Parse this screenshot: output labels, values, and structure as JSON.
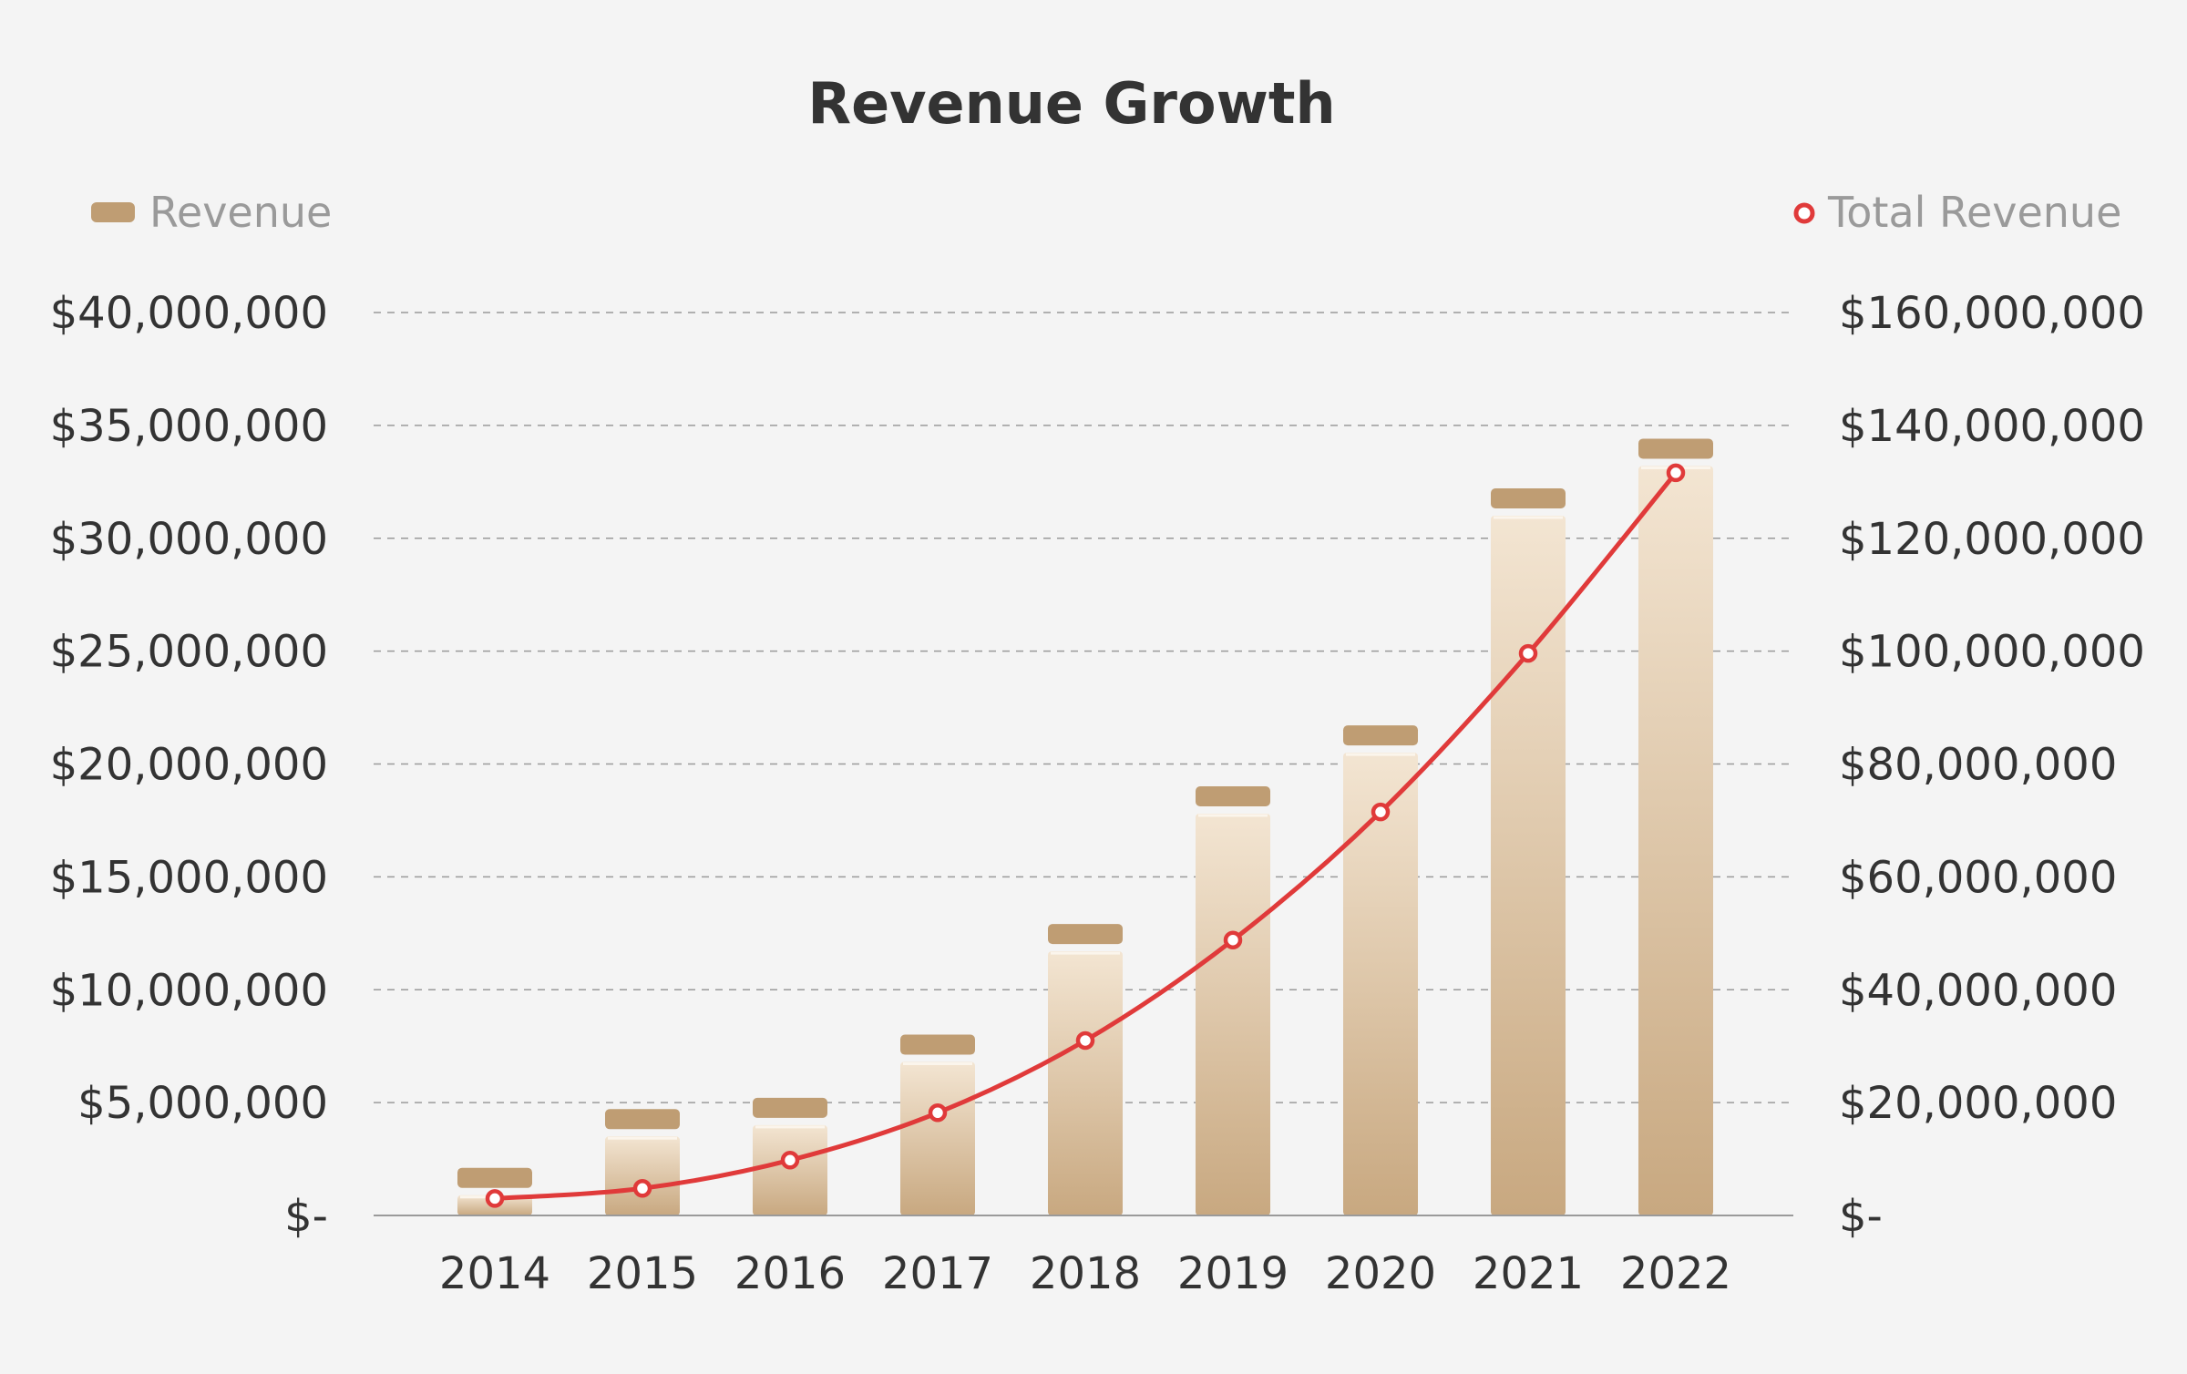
{
  "chart_data": {
    "type": "bar",
    "title": "Revenue Growth",
    "categories": [
      "2014",
      "2015",
      "2016",
      "2017",
      "2018",
      "2019",
      "2020",
      "2021",
      "2022"
    ],
    "series": [
      {
        "name": "Revenue",
        "type": "bar",
        "axis": "left",
        "values": [
          900000,
          3500000,
          4000000,
          6800000,
          11700000,
          17800000,
          20500000,
          31000000,
          33200000
        ]
      },
      {
        "name": "Total Revenue",
        "type": "line",
        "axis": "right",
        "values": [
          3000000,
          4800000,
          9800000,
          18200000,
          31000000,
          48800000,
          71500000,
          99600000,
          131600000
        ]
      }
    ],
    "y_left": {
      "ylim": [
        0,
        40000000
      ],
      "ticks": [
        0,
        5000000,
        10000000,
        15000000,
        20000000,
        25000000,
        30000000,
        35000000,
        40000000
      ],
      "tick_labels": [
        "$-",
        "$5,000,000",
        "$10,000,000",
        "$15,000,000",
        "$20,000,000",
        "$25,000,000",
        "$30,000,000",
        "$35,000,000",
        "$40,000,000"
      ]
    },
    "y_right": {
      "ylim": [
        0,
        160000000
      ],
      "ticks": [
        0,
        20000000,
        40000000,
        60000000,
        80000000,
        100000000,
        120000000,
        140000000,
        160000000
      ],
      "tick_labels": [
        "$-",
        "$20,000,000",
        "$40,000,000",
        "$60,000,000",
        "$80,000,000",
        "$100,000,000",
        "$120,000,000",
        "$140,000,000",
        "$160,000,000"
      ]
    },
    "grid": true,
    "grid_style": "dashed",
    "legend": {
      "revenue_position": "top-left",
      "total_position": "top-right"
    },
    "colors": {
      "bar_top": "#f3e5d2",
      "bar_bottom": "#c8a880",
      "bar_cap": "#bf9d73",
      "line": "#e03a3a",
      "marker_fill": "#ffffff",
      "grid": "#9a9a9a",
      "axis": "#9a9a9a",
      "background": "#f4f4f4"
    }
  }
}
